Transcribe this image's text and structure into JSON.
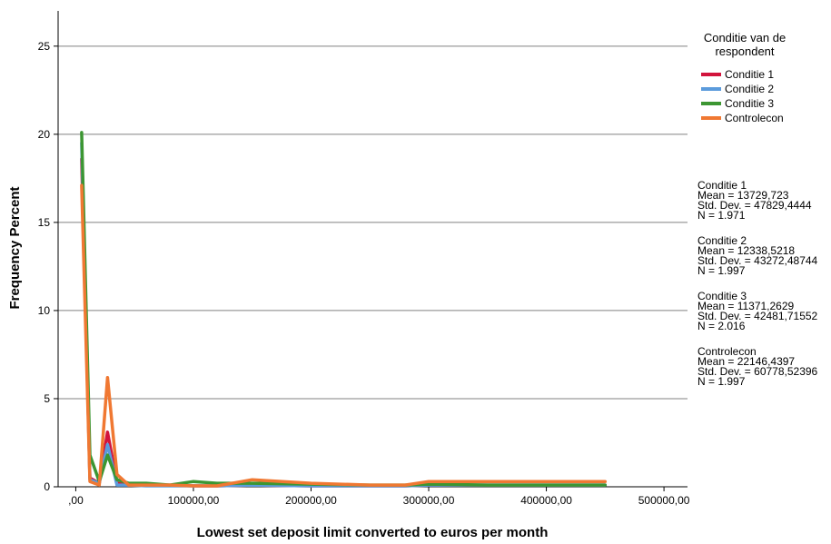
{
  "chart_data": {
    "type": "line",
    "title": "",
    "xlabel": "Lowest set deposit limit converted to euros per month",
    "ylabel": "Frequency Percent",
    "xlim": [
      -15000,
      520000
    ],
    "ylim": [
      0,
      27
    ],
    "x_ticks": [
      0,
      100000,
      200000,
      300000,
      400000,
      500000
    ],
    "x_tick_labels": [
      ",00",
      "100000,00",
      "200000,00",
      "300000,00",
      "400000,00",
      "500000,00"
    ],
    "y_ticks": [
      0,
      5,
      10,
      15,
      20,
      25
    ],
    "y_tick_labels": [
      "0",
      "5",
      "10",
      "15",
      "20",
      "25"
    ],
    "grid": "horizontal",
    "legend_title": "Conditie van de respondent",
    "legend_position": "right",
    "series": [
      {
        "name": "Conditie 1",
        "color": "#d2143c",
        "x": [
          5000,
          12000,
          20000,
          27000,
          35000,
          45000,
          60000,
          80000,
          100000,
          120000,
          150000,
          200000,
          250000,
          280000,
          300000,
          350000,
          400000,
          450000
        ],
        "y": [
          18.6,
          0.5,
          0.2,
          3.1,
          0.2,
          0.1,
          0.1,
          0.1,
          0.05,
          0.05,
          0.1,
          0.05,
          0.05,
          0.05,
          0.1,
          0.1,
          0.1,
          0.1
        ],
        "stats": {
          "label": "Conditie 1",
          "mean": "Mean = 13729,723",
          "sd": "Std. Dev. = 47829,4444",
          "n": "N = 1.971"
        }
      },
      {
        "name": "Conditie 2",
        "color": "#5b9bdc",
        "x": [
          5000,
          12000,
          20000,
          27000,
          35000,
          45000,
          60000,
          80000,
          100000,
          120000,
          150000,
          200000,
          250000,
          280000,
          300000,
          350000,
          400000,
          450000
        ],
        "y": [
          19.5,
          0.4,
          0.2,
          2.4,
          0.1,
          0.1,
          0.05,
          0.05,
          0.05,
          0.05,
          0.1,
          0.05,
          0.05,
          0.05,
          0.1,
          0.1,
          0.1,
          0.1
        ],
        "stats": {
          "label": "Conditie 2",
          "mean": "Mean = 12338,5218",
          "sd": "Std. Dev. = 43272,48744",
          "n": "N = 1.997"
        }
      },
      {
        "name": "Conditie 3",
        "color": "#3c9632",
        "x": [
          5000,
          12000,
          20000,
          27000,
          35000,
          45000,
          60000,
          80000,
          100000,
          120000,
          150000,
          200000,
          250000,
          280000,
          300000,
          350000,
          400000,
          450000
        ],
        "y": [
          20.1,
          1.8,
          0.3,
          1.8,
          0.4,
          0.2,
          0.2,
          0.1,
          0.3,
          0.2,
          0.2,
          0.15,
          0.1,
          0.1,
          0.15,
          0.1,
          0.1,
          0.1
        ],
        "stats": {
          "label": "Conditie 3",
          "mean": "Mean = 11371,2629",
          "sd": "Std. Dev. = 42481,71552",
          "n": "N = 2.016"
        }
      },
      {
        "name": "Controlecon",
        "color": "#f07832",
        "x": [
          5000,
          12000,
          20000,
          27000,
          35000,
          45000,
          60000,
          80000,
          100000,
          120000,
          150000,
          200000,
          250000,
          280000,
          300000,
          350000,
          400000,
          450000
        ],
        "y": [
          17.1,
          0.3,
          0.1,
          6.2,
          0.7,
          0.1,
          0.1,
          0.1,
          0.05,
          0.05,
          0.4,
          0.2,
          0.1,
          0.1,
          0.3,
          0.3,
          0.3,
          0.3
        ],
        "stats": {
          "label": "Controlecon",
          "mean": "Mean = 22146,4397",
          "sd": "Std. Dev. = 60778,52396",
          "n": "N = 1.997"
        }
      }
    ]
  }
}
